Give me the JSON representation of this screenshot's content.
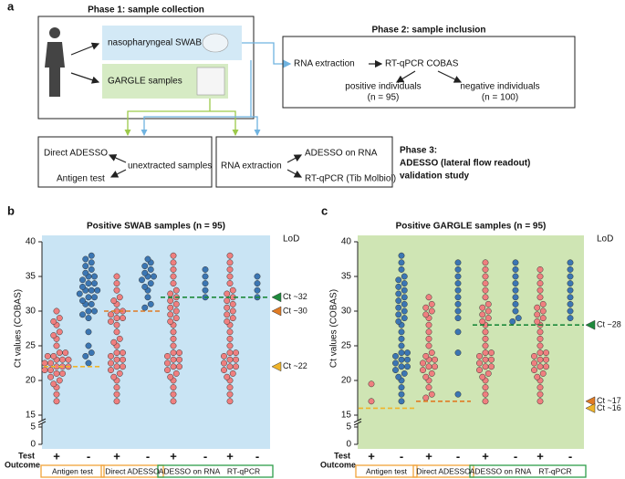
{
  "diagram": {
    "panel": "a",
    "phase1": "Phase 1: sample collection",
    "swab": "nasopharyngeal SWAB",
    "gargle": "GARGLE samples",
    "phase2": "Phase 2: sample inclusion",
    "rna_extraction": "RNA extraction",
    "cobas": "RT-qPCR COBAS",
    "positive": "positive individuals",
    "positive_n": "(n = 95)",
    "negative": "negative individuals",
    "negative_n": "(n = 100)",
    "direct_adesso": "Direct ADESSO",
    "unextracted": "unextracted samples",
    "antigen": "Antigen test",
    "rna_extraction_2": "RNA extraction",
    "adesso_rna": "ADESSO on RNA",
    "rtqpcr_tib": "RT-qPCR (Tib Molbiol)",
    "phase3": [
      "Phase 3:",
      "ADESSO (lateral flow readout)",
      "validation study"
    ]
  },
  "chart_data": [
    {
      "type": "strip",
      "panel": "b",
      "title": "Positive SWAB samples (n = 95)",
      "ylabel": "Ct values (COBAS)",
      "background": "#c9e4f4",
      "ylim": [
        15,
        40
      ],
      "yticks": [
        15,
        20,
        25,
        30,
        35,
        40
      ],
      "ybreak_lim": [
        0,
        5
      ],
      "ybreak_ticks": [
        0,
        5
      ],
      "xlabel": [
        "Test",
        "Outcome"
      ],
      "lod_title": "LoD",
      "groups": [
        {
          "name": "Antigen test",
          "series": [
            {
              "name": "+",
              "color": "#ef7f7f",
              "values": [
                17,
                18,
                19,
                19.5,
                20,
                20.5,
                21,
                21,
                21.5,
                21.5,
                22,
                22,
                22,
                22.5,
                22.5,
                23,
                23,
                23,
                23.5,
                23.5,
                24,
                24,
                25,
                26,
                26.5,
                27,
                28,
                28.5,
                29,
                30
              ]
            },
            {
              "name": "-",
              "color": "#3b76b3",
              "values": [
                22.5,
                23.5,
                24,
                25,
                27,
                29,
                29.5,
                30,
                30,
                31,
                31,
                31.5,
                32,
                32,
                32.5,
                33,
                33,
                33,
                33.5,
                34,
                34,
                34.5,
                35,
                35,
                35.5,
                36,
                36.5,
                37,
                37.5,
                38
              ]
            }
          ]
        },
        {
          "name": "Direct ADESSO",
          "series": [
            {
              "name": "+",
              "color": "#ef7f7f",
              "values": [
                17,
                18,
                19,
                20,
                20.5,
                21,
                21.5,
                22,
                22,
                22.5,
                23,
                23,
                23.5,
                24,
                24,
                25,
                25.5,
                26,
                27,
                28,
                28.5,
                29,
                29,
                29.5,
                30,
                30,
                31,
                31.5,
                32,
                33,
                34,
                35
              ]
            },
            {
              "name": "-",
              "color": "#3b76b3",
              "values": [
                30.5,
                31,
                32,
                33,
                33.5,
                34,
                34.5,
                35,
                35,
                35.5,
                36,
                36.5,
                37,
                37.5
              ]
            }
          ]
        },
        {
          "name": "ADESSO on RNA",
          "series": [
            {
              "name": "+",
              "color": "#ef7f7f",
              "values": [
                17,
                18,
                19,
                20,
                20.5,
                21,
                21.5,
                22,
                22,
                22.5,
                23,
                23,
                23.5,
                24,
                24,
                25,
                26,
                27,
                28,
                28.5,
                29,
                29.5,
                30,
                30.5,
                31,
                31.5,
                32,
                32.5,
                33,
                34,
                35,
                36,
                37,
                38
              ]
            },
            {
              "name": "-",
              "color": "#3b76b3",
              "values": [
                32,
                33,
                34,
                35,
                36
              ]
            }
          ]
        },
        {
          "name": "RT-qPCR",
          "series": [
            {
              "name": "+",
              "color": "#ef7f7f",
              "values": [
                17,
                18,
                19,
                20,
                20.5,
                21,
                21.5,
                22,
                22,
                22.5,
                23,
                23,
                23.5,
                24,
                24,
                25,
                26,
                27,
                28,
                28.5,
                29,
                29.5,
                30,
                30.5,
                31,
                31.5,
                32,
                32.5,
                33,
                34,
                35,
                36,
                37,
                38
              ]
            },
            {
              "name": "-",
              "color": "#3b76b3",
              "values": [
                32,
                33,
                34,
                35
              ]
            }
          ]
        }
      ],
      "boxes": [
        {
          "color": "#f2a33a",
          "groups": [
            "Antigen test"
          ]
        },
        {
          "color": "#f2a33a",
          "groups": [
            "Direct ADESSO"
          ]
        },
        {
          "color": "#2e9e4a",
          "groups": [
            "ADESSO on RNA",
            "RT-qPCR"
          ]
        }
      ],
      "lod_markers": [
        {
          "label": "Ct ~32",
          "value": 32,
          "color": "#1e8a3c",
          "applies_to": [
            "ADESSO on RNA",
            "RT-qPCR"
          ]
        },
        {
          "label": "Ct ~30",
          "value": 30,
          "color": "#e07b24",
          "applies_to": [
            "Direct ADESSO"
          ]
        },
        {
          "label": "Ct ~22",
          "value": 22,
          "color": "#f0b429",
          "applies_to": [
            "Antigen test"
          ]
        }
      ]
    },
    {
      "type": "strip",
      "panel": "c",
      "title": "Positive GARGLE samples (n = 95)",
      "ylabel": "Ct values (COBAS)",
      "background": "#cfe5b4",
      "ylim": [
        15,
        40
      ],
      "yticks": [
        15,
        20,
        25,
        30,
        35,
        40
      ],
      "ybreak_lim": [
        0,
        5
      ],
      "ybreak_ticks": [
        0,
        5
      ],
      "xlabel": [
        "Test",
        "Outcome"
      ],
      "lod_title": "LoD",
      "groups": [
        {
          "name": "Antigen test",
          "series": [
            {
              "name": "+",
              "color": "#ef7f7f",
              "values": [
                17,
                19.5
              ]
            },
            {
              "name": "-",
              "color": "#3b76b3",
              "values": [
                17,
                18,
                19,
                20,
                20.5,
                21,
                21.5,
                22,
                22,
                22.5,
                23,
                23,
                23.5,
                24,
                24,
                25,
                26,
                27,
                28,
                28.5,
                29,
                29.5,
                30,
                30.5,
                31,
                31.5,
                32,
                32.5,
                33,
                33.5,
                34,
                34.5,
                35,
                36,
                37,
                38
              ]
            }
          ]
        },
        {
          "name": "Direct ADESSO",
          "series": [
            {
              "name": "+",
              "color": "#ef7f7f",
              "values": [
                17.5,
                18,
                19,
                20,
                20.5,
                21,
                21.5,
                22,
                22,
                22.5,
                23,
                23,
                23.5,
                24,
                25,
                26,
                27,
                28,
                29,
                29.5,
                30,
                30.5,
                31,
                32
              ]
            },
            {
              "name": "-",
              "color": "#3b76b3",
              "values": [
                18,
                24,
                27,
                29,
                30,
                31,
                32,
                33,
                34,
                35,
                36,
                37
              ]
            }
          ]
        },
        {
          "name": "ADESSO on RNA",
          "series": [
            {
              "name": "+",
              "color": "#ef7f7f",
              "values": [
                17,
                18,
                19,
                20,
                20.5,
                21,
                21.5,
                22,
                22,
                22.5,
                23,
                23,
                23.5,
                24,
                24,
                25,
                26,
                27,
                28,
                28.5,
                29,
                29.5,
                30,
                30.5,
                31,
                32,
                33,
                34,
                35,
                36,
                37
              ]
            },
            {
              "name": "-",
              "color": "#3b76b3",
              "values": [
                28.5,
                29,
                30,
                31,
                32,
                33,
                34,
                35,
                36,
                37
              ]
            }
          ]
        },
        {
          "name": "RT-qPCR",
          "series": [
            {
              "name": "+",
              "color": "#ef7f7f",
              "values": [
                17,
                18,
                19,
                20,
                20.5,
                21,
                21.5,
                22,
                22,
                22.5,
                23,
                23,
                23.5,
                24,
                24,
                25,
                26,
                27,
                28,
                28.5,
                29,
                29.5,
                30,
                30.5,
                31,
                32,
                33,
                34,
                35,
                36
              ]
            },
            {
              "name": "-",
              "color": "#3b76b3",
              "values": [
                29,
                30,
                31,
                32,
                33,
                34,
                35,
                36,
                37
              ]
            }
          ]
        }
      ],
      "boxes": [
        {
          "color": "#f2a33a",
          "groups": [
            "Antigen test"
          ]
        },
        {
          "color": "#f2a33a",
          "groups": [
            "Direct ADESSO"
          ]
        },
        {
          "color": "#2e9e4a",
          "groups": [
            "ADESSO on RNA",
            "RT-qPCR"
          ]
        }
      ],
      "lod_markers": [
        {
          "label": "Ct ~28",
          "value": 28,
          "color": "#1e8a3c",
          "applies_to": [
            "ADESSO on RNA",
            "RT-qPCR"
          ]
        },
        {
          "label": "Ct ~17",
          "value": 17,
          "color": "#e07b24",
          "applies_to": [
            "Direct ADESSO"
          ]
        },
        {
          "label": "Ct ~16",
          "value": 16,
          "color": "#f0b429",
          "applies_to": [
            "Antigen test"
          ]
        }
      ]
    }
  ]
}
